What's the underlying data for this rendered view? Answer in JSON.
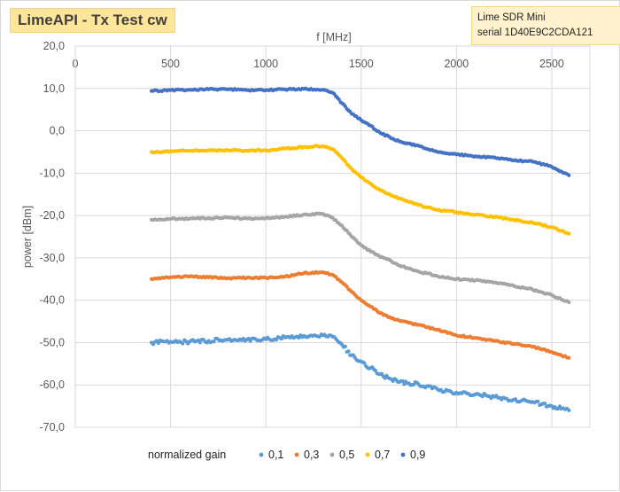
{
  "title": "LimeAPI - Tx Test  cw",
  "device": {
    "line1": "Lime SDR Mini",
    "line2": "serial  1D40E9C2CDA121"
  },
  "chart_data": {
    "type": "scatter",
    "xlabel": "f [MHz]",
    "ylabel": "power [dBm]",
    "xlim": [
      0,
      2700
    ],
    "ylim": [
      -70,
      20
    ],
    "x_ticks": [
      "0",
      "500",
      "1000",
      "1500",
      "2000",
      "2500"
    ],
    "y_ticks": [
      "20,0",
      "10,0",
      "0,0",
      "-10,0",
      "-20,0",
      "-30,0",
      "-40,0",
      "-50,0",
      "-60,0",
      "-70,0"
    ],
    "grid": true,
    "legend_position": "bottom",
    "legend_title": "normalized gain",
    "series": [
      {
        "name": "0,1",
        "color": "#5b9bd5",
        "x": [
          400,
          500,
          600,
          700,
          800,
          900,
          1000,
          1100,
          1200,
          1300,
          1350,
          1400,
          1450,
          1500,
          1550,
          1600,
          1650,
          1700,
          1750,
          1800,
          1900,
          2000,
          2100,
          2200,
          2300,
          2400,
          2500,
          2550,
          2590
        ],
        "y": [
          -50,
          -49.8,
          -49.8,
          -49.6,
          -49.3,
          -49.3,
          -49.2,
          -48.8,
          -48.4,
          -48.3,
          -48.6,
          -50.5,
          -53,
          -54.5,
          -56,
          -57.5,
          -58.5,
          -59.3,
          -59.6,
          -59.8,
          -61,
          -61.8,
          -62.2,
          -62.8,
          -63.5,
          -64,
          -65,
          -65.6,
          -66
        ]
      },
      {
        "name": "0,3",
        "color": "#ed7d31",
        "x": [
          400,
          500,
          600,
          700,
          800,
          900,
          1000,
          1100,
          1200,
          1300,
          1350,
          1400,
          1450,
          1500,
          1550,
          1600,
          1650,
          1700,
          1750,
          1800,
          1900,
          2000,
          2100,
          2200,
          2300,
          2400,
          2500,
          2550,
          2590
        ],
        "y": [
          -35,
          -34.6,
          -34.4,
          -34.6,
          -34.8,
          -34.7,
          -34.7,
          -34.4,
          -33.6,
          -33.4,
          -34,
          -35.8,
          -38,
          -40,
          -41.5,
          -43,
          -44,
          -44.8,
          -45.3,
          -45.8,
          -47,
          -48.3,
          -48.9,
          -49.6,
          -50.3,
          -51,
          -52.2,
          -53,
          -53.6
        ]
      },
      {
        "name": "0,5",
        "color": "#a5a5a5",
        "x": [
          400,
          500,
          600,
          700,
          800,
          900,
          1000,
          1100,
          1200,
          1300,
          1350,
          1400,
          1450,
          1500,
          1550,
          1600,
          1650,
          1700,
          1750,
          1800,
          1900,
          2000,
          2100,
          2200,
          2300,
          2400,
          2500,
          2550,
          2590
        ],
        "y": [
          -21,
          -20.8,
          -20.7,
          -20.6,
          -20.5,
          -20.7,
          -20.6,
          -20.3,
          -19.8,
          -19.6,
          -20.5,
          -22.4,
          -25,
          -27,
          -28.5,
          -29.8,
          -30.5,
          -31.8,
          -32.5,
          -33.2,
          -34.3,
          -35,
          -35.3,
          -35.8,
          -36.6,
          -37.5,
          -38.8,
          -39.8,
          -40.5
        ]
      },
      {
        "name": "0,7",
        "color": "#ffc000",
        "x": [
          400,
          500,
          600,
          700,
          800,
          900,
          1000,
          1100,
          1200,
          1300,
          1350,
          1400,
          1450,
          1500,
          1550,
          1600,
          1650,
          1700,
          1750,
          1800,
          1900,
          2000,
          2100,
          2200,
          2300,
          2400,
          2500,
          2550,
          2590
        ],
        "y": [
          -5,
          -4.8,
          -4.7,
          -4.6,
          -4.6,
          -4.7,
          -4.6,
          -4.2,
          -3.8,
          -3.6,
          -4.3,
          -6.5,
          -9,
          -11,
          -12.5,
          -14,
          -15,
          -16,
          -16.8,
          -17.5,
          -18.7,
          -19.2,
          -19.8,
          -20.3,
          -21,
          -21.7,
          -22.8,
          -23.6,
          -24.3
        ]
      },
      {
        "name": "0,9",
        "color": "#4472c4",
        "x": [
          400,
          500,
          600,
          700,
          800,
          900,
          1000,
          1100,
          1200,
          1300,
          1350,
          1400,
          1450,
          1500,
          1550,
          1600,
          1650,
          1700,
          1750,
          1800,
          1900,
          2000,
          2100,
          2200,
          2300,
          2400,
          2500,
          2550,
          2590
        ],
        "y": [
          9.4,
          9.6,
          9.7,
          9.8,
          9.8,
          9.6,
          9.6,
          9.8,
          9.9,
          9.7,
          9,
          6.5,
          4,
          2.5,
          1.2,
          -0.5,
          -1.5,
          -2.5,
          -3,
          -3.5,
          -5,
          -5.6,
          -6,
          -6.3,
          -7,
          -7.3,
          -8.5,
          -9.6,
          -10.5
        ]
      }
    ]
  }
}
